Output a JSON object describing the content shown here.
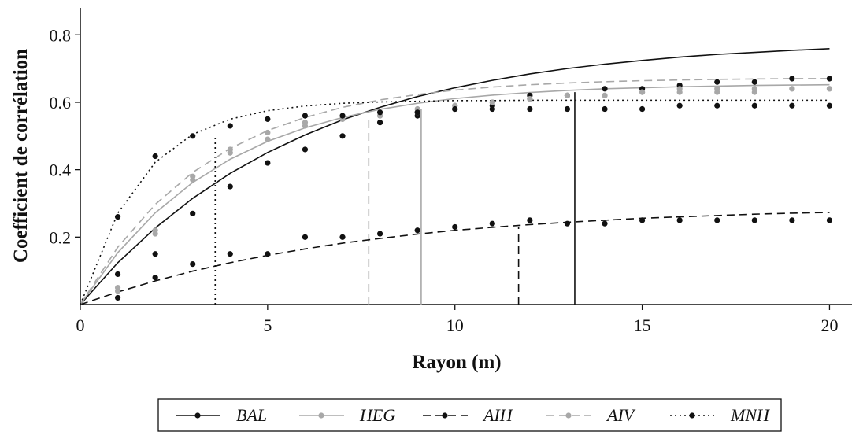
{
  "chart_data": {
    "type": "scatter",
    "xlabel": "Rayon (m)",
    "ylabel": "Coefficient de corrélation",
    "xlim": [
      0,
      20.6
    ],
    "ylim": [
      0,
      0.88
    ],
    "xticks": [
      0,
      5,
      10,
      15,
      20
    ],
    "xtick_labels": [
      "0",
      "5",
      "10",
      "15",
      "20"
    ],
    "yticks": [
      0.2,
      0.4,
      0.6,
      0.8
    ],
    "ytick_labels": [
      "0.2",
      "0.4",
      "0.6",
      "0.8"
    ],
    "grid": false,
    "legend_position": "bottom",
    "x": [
      1,
      2,
      3,
      4,
      5,
      6,
      7,
      8,
      9,
      10,
      11,
      12,
      13,
      14,
      15,
      16,
      17,
      18,
      19,
      20
    ],
    "series": [
      {
        "name": "BAL",
        "color": "#111111",
        "line_style": "solid",
        "values": [
          0.09,
          0.15,
          0.27,
          0.35,
          0.42,
          0.46,
          0.5,
          0.54,
          0.56,
          0.58,
          0.59,
          0.62,
          0.62,
          0.64,
          0.64,
          0.65,
          0.66,
          0.66,
          0.67,
          0.67
        ],
        "fit": [
          0.0,
          0.124,
          0.227,
          0.315,
          0.389,
          0.451,
          0.503,
          0.548,
          0.585,
          0.617,
          0.643,
          0.665,
          0.684,
          0.7,
          0.713,
          0.724,
          0.734,
          0.742,
          0.748,
          0.754,
          0.759
        ],
        "range_x": 13.2,
        "range_y": 0.63
      },
      {
        "name": "HEG",
        "color": "#a8a8a8",
        "line_style": "solid",
        "values": [
          0.05,
          0.22,
          0.38,
          0.45,
          0.49,
          0.53,
          0.55,
          0.56,
          0.58,
          0.59,
          0.6,
          0.61,
          0.62,
          0.62,
          0.63,
          0.64,
          0.64,
          0.64,
          0.64,
          0.64
        ],
        "fit": [
          0.0,
          0.154,
          0.272,
          0.362,
          0.431,
          0.484,
          0.524,
          0.555,
          0.579,
          0.597,
          0.611,
          0.621,
          0.629,
          0.635,
          0.64,
          0.643,
          0.646,
          0.648,
          0.65,
          0.651,
          0.652
        ],
        "range_x": 9.1,
        "range_y": 0.58
      },
      {
        "name": "AIH",
        "color": "#111111",
        "line_style": "dashed",
        "values": [
          0.02,
          0.08,
          0.12,
          0.15,
          0.15,
          0.2,
          0.2,
          0.21,
          0.22,
          0.23,
          0.24,
          0.25,
          0.24,
          0.24,
          0.25,
          0.25,
          0.25,
          0.25,
          0.25,
          0.25
        ],
        "fit": [
          0.0,
          0.037,
          0.07,
          0.099,
          0.124,
          0.146,
          0.165,
          0.182,
          0.196,
          0.209,
          0.22,
          0.229,
          0.237,
          0.244,
          0.25,
          0.256,
          0.26,
          0.264,
          0.268,
          0.271,
          0.273
        ],
        "range_x": 11.7,
        "range_y": 0.23
      },
      {
        "name": "AIV",
        "color": "#a8a8a8",
        "line_style": "dashed",
        "values": [
          0.04,
          0.21,
          0.37,
          0.46,
          0.51,
          0.54,
          0.55,
          0.56,
          0.57,
          0.59,
          0.6,
          0.61,
          0.62,
          0.62,
          0.63,
          0.63,
          0.63,
          0.63,
          0.64,
          0.64
        ],
        "fit": [
          0.0,
          0.17,
          0.297,
          0.392,
          0.463,
          0.516,
          0.555,
          0.585,
          0.607,
          0.623,
          0.636,
          0.645,
          0.652,
          0.657,
          0.661,
          0.664,
          0.666,
          0.668,
          0.669,
          0.67,
          0.67
        ],
        "range_x": 7.7,
        "range_y": 0.56
      },
      {
        "name": "MNH",
        "color": "#111111",
        "line_style": "dotted",
        "values": [
          0.26,
          0.44,
          0.5,
          0.53,
          0.55,
          0.56,
          0.56,
          0.57,
          0.57,
          0.58,
          0.58,
          0.58,
          0.58,
          0.58,
          0.58,
          0.59,
          0.59,
          0.59,
          0.59,
          0.59
        ],
        "fit": [
          0.0,
          0.271,
          0.422,
          0.505,
          0.55,
          0.575,
          0.589,
          0.597,
          0.601,
          0.603,
          0.605,
          0.605,
          0.606,
          0.606,
          0.606,
          0.606,
          0.606,
          0.606,
          0.606,
          0.606,
          0.606
        ],
        "range_x": 3.6,
        "range_y": 0.5
      }
    ]
  }
}
